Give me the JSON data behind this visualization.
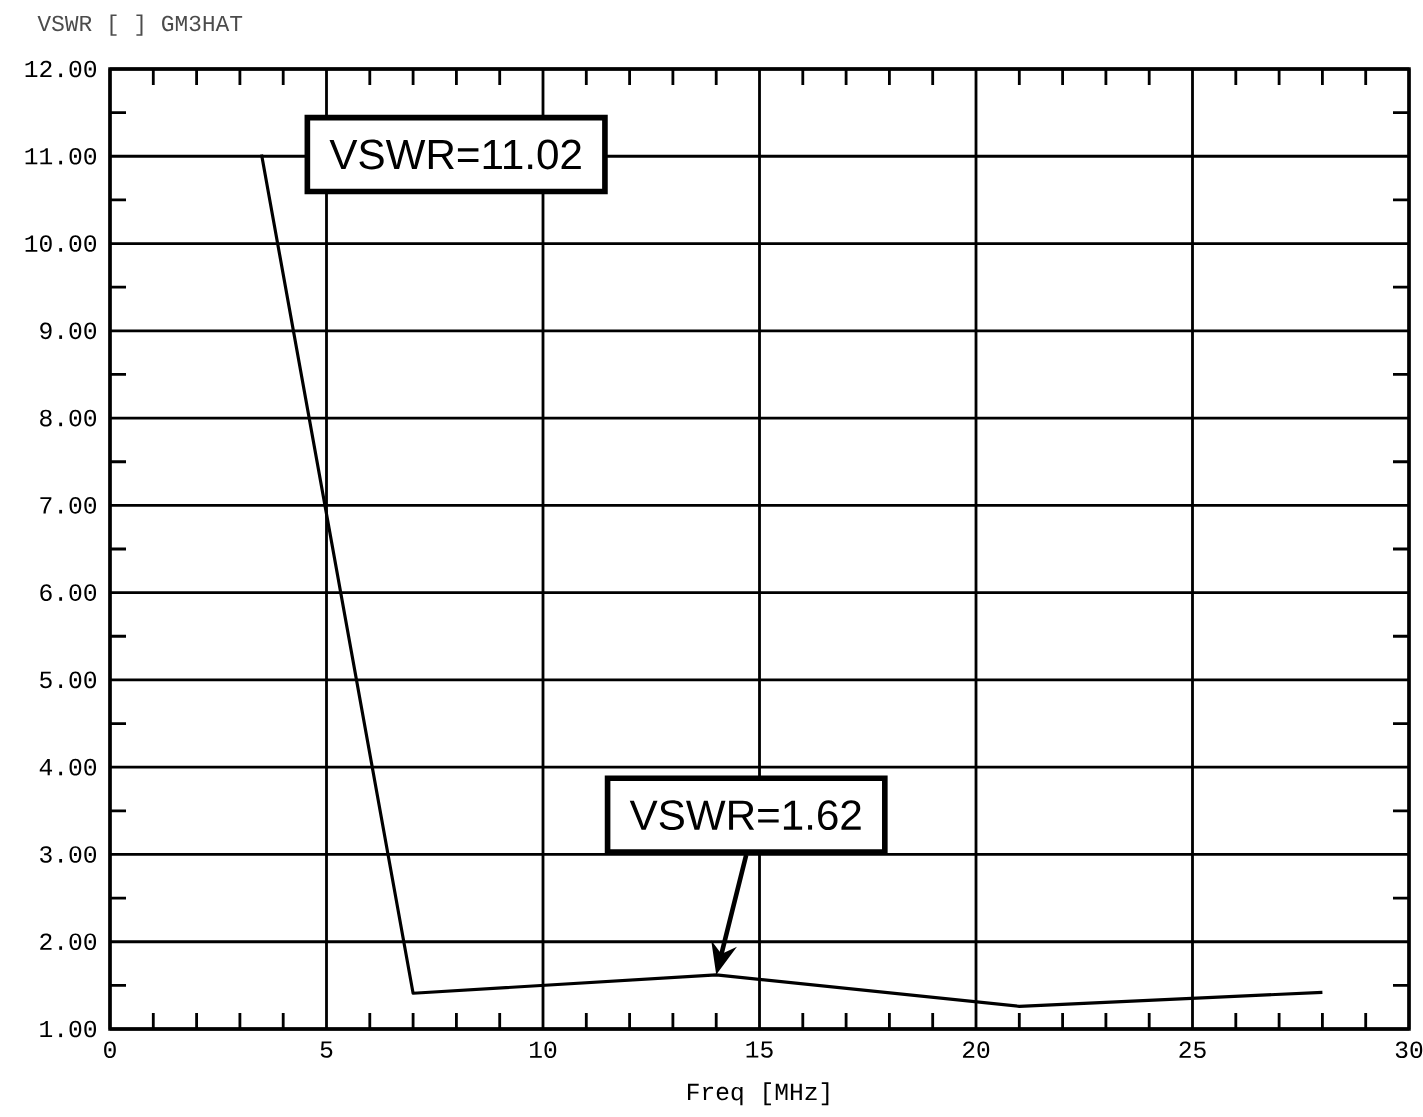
{
  "chart_data": {
    "type": "line",
    "title": "VSWR [   ] GM3HAT",
    "xlabel": "Freq [MHz]",
    "x": [
      3.5,
      7,
      14,
      21,
      28
    ],
    "series": [
      {
        "color": "#000000",
        "values": [
          11.02,
          1.41,
          1.62,
          1.26,
          1.42
        ]
      }
    ],
    "xlim": [
      0,
      30
    ],
    "xticks": [
      0,
      5,
      10,
      15,
      20,
      25,
      30
    ],
    "ylim": [
      1,
      12
    ],
    "yticks": [
      {
        "value": 1,
        "label": "1.00"
      },
      {
        "value": 2,
        "label": "2.00"
      },
      {
        "value": 3,
        "label": "3.00"
      },
      {
        "value": 4,
        "label": "4.00"
      },
      {
        "value": 5,
        "label": "5.00"
      },
      {
        "value": 6,
        "label": "6.00"
      },
      {
        "value": 7,
        "label": "7.00"
      },
      {
        "value": 8,
        "label": "8.00"
      },
      {
        "value": 9,
        "label": "9.00"
      },
      {
        "value": 10,
        "label": "10.00"
      },
      {
        "value": 11,
        "label": "11.00"
      },
      {
        "value": 12,
        "label": "12.00"
      }
    ],
    "grid": true,
    "annotations": [
      {
        "text": "VSWR=11.02",
        "x": 3.5,
        "y": 11.02
      },
      "VSWR=1.62"
    ]
  }
}
